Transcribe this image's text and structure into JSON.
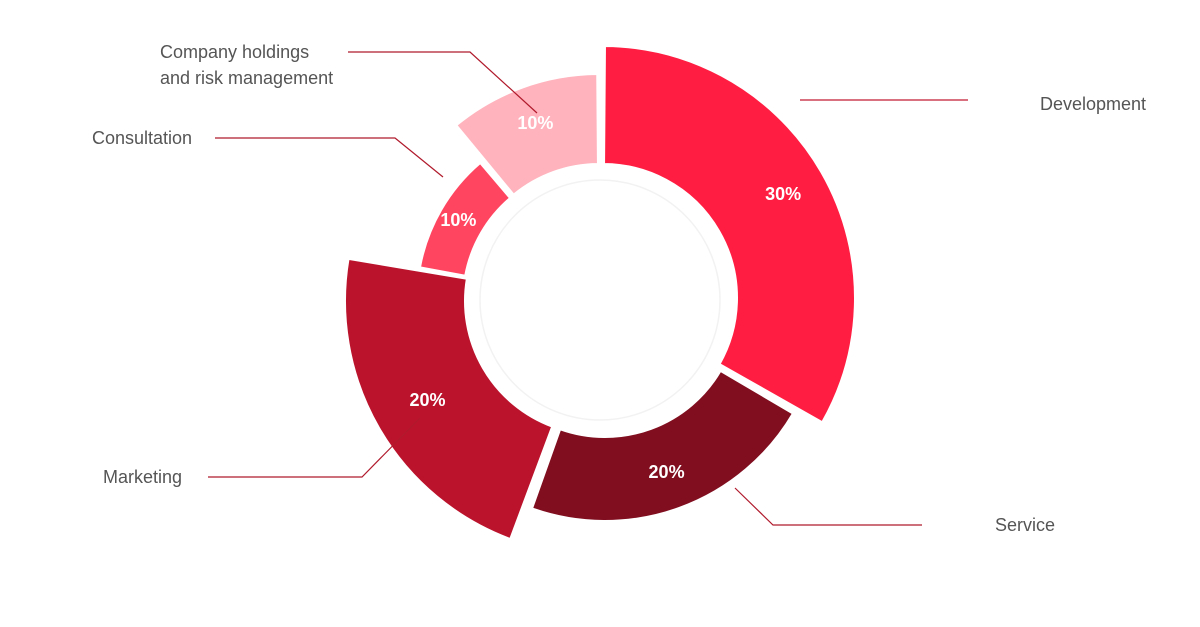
{
  "chart_data": {
    "type": "donut",
    "title": "",
    "unit": "%",
    "slices": [
      {
        "label": "Development",
        "value": 30,
        "display": "30%",
        "color": "#ff1e41"
      },
      {
        "label": "Service",
        "value": 20,
        "display": "20%",
        "color": "#800e1f"
      },
      {
        "label": "Marketing",
        "value": 20,
        "display": "20%",
        "color": "#bb132c"
      },
      {
        "label": "Consultation",
        "value": 10,
        "display": "10%",
        "color": "#ff4560"
      },
      {
        "label": "Company holdings and risk management",
        "value": 10,
        "display": "10%",
        "color": "#ffb3bd"
      }
    ],
    "label_lines": {
      "Company holdings and risk management": [
        "Company holdings",
        "and risk management"
      ]
    },
    "legend": "none",
    "label_color": "#555555",
    "center_color": "#ffffff"
  }
}
